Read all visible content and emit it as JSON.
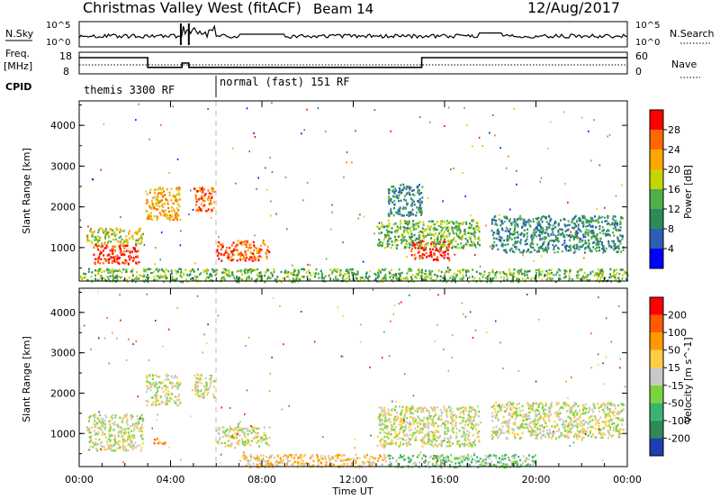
{
  "header": {
    "title": "Christmas Valley West (fitACF)",
    "beam": "Beam 14",
    "date": "12/Aug/2017"
  },
  "colors": {
    "frame": "#000000",
    "gridline": "#aaaaaa"
  },
  "top_panels": {
    "nsky_label": "N.Sky",
    "nsearch_label": "N.Search",
    "nsky_ticks": [
      "10^5",
      "10^0"
    ],
    "nsearch_ticks": [
      "10^5",
      "10^0"
    ],
    "freq_label_1": "Freq.",
    "freq_label_2": "[MHz]",
    "freq_ticks": [
      "18",
      "8"
    ],
    "nave_label": "Nave",
    "nave_ticks": [
      "60",
      "0"
    ],
    "cpid_label": "CPID",
    "cpid_modes": [
      {
        "name": "themis 3300 RF",
        "start_hour": 0.0,
        "end_hour": 6.0
      },
      {
        "name": "normal (fast) 151 RF",
        "start_hour": 6.0,
        "end_hour": 24.0
      }
    ],
    "freq_steps": [
      {
        "start_hour": 0.0,
        "end_hour": 3.0,
        "value": 15.5
      },
      {
        "start_hour": 3.0,
        "end_hour": 4.5,
        "value": 11.0
      },
      {
        "start_hour": 4.5,
        "end_hour": 4.8,
        "value": 13.0
      },
      {
        "start_hour": 4.8,
        "end_hour": 15.0,
        "value": 11.0
      },
      {
        "start_hour": 15.0,
        "end_hour": 24.0,
        "value": 15.5
      }
    ]
  },
  "chart_data": {
    "type": "heatmap",
    "x_axis": {
      "label": "Time UT",
      "ticks": [
        "00:00",
        "04:00",
        "08:00",
        "12:00",
        "16:00",
        "20:00",
        "00:00"
      ],
      "range_hours": [
        0,
        24
      ]
    },
    "panels": [
      {
        "name": "power",
        "ylabel": "Slant Range [km]",
        "yticks": [
          "1000",
          "2000",
          "3000",
          "4000"
        ],
        "ylim": [
          180,
          4600
        ],
        "colorbar_label": "Power [dB]",
        "colorbar_ticks": [
          "4",
          "8",
          "12",
          "16",
          "20",
          "24",
          "28"
        ],
        "colorbar_colors": [
          "#0000ff",
          "#2c5fb4",
          "#2e8b57",
          "#4db04a",
          "#c8d400",
          "#ffa500",
          "#ff6a00",
          "#ff0000"
        ],
        "regions": [
          {
            "t0": 0.6,
            "t1": 2.6,
            "r0": 600,
            "r1": 1100,
            "level": 7
          },
          {
            "t0": 0.3,
            "t1": 2.8,
            "r0": 1100,
            "r1": 1500,
            "level": 4
          },
          {
            "t0": 2.9,
            "t1": 4.4,
            "r0": 1700,
            "r1": 2500,
            "level": 5
          },
          {
            "t0": 5.0,
            "t1": 5.9,
            "r0": 1900,
            "r1": 2500,
            "level": 6
          },
          {
            "t0": 6.0,
            "t1": 8.3,
            "r0": 700,
            "r1": 1200,
            "level": 6
          },
          {
            "t0": 14.5,
            "t1": 16.2,
            "r0": 700,
            "r1": 1200,
            "level": 7
          },
          {
            "t0": 13.0,
            "t1": 17.5,
            "r0": 1000,
            "r1": 1700,
            "level": 3
          },
          {
            "t0": 18.0,
            "t1": 23.8,
            "r0": 900,
            "r1": 1800,
            "level": 2
          },
          {
            "t0": 13.5,
            "t1": 15.0,
            "r0": 1800,
            "r1": 2600,
            "level": 2
          },
          {
            "t0": 0.0,
            "t1": 24.0,
            "r0": 180,
            "r1": 500,
            "level": 3
          }
        ]
      },
      {
        "name": "velocity",
        "ylabel": "Slant Range [km]",
        "yticks": [
          "1000",
          "2000",
          "3000",
          "4000"
        ],
        "ylim": [
          180,
          4600
        ],
        "colorbar_label": "Velocity [m s^-1]",
        "colorbar_ticks": [
          "200",
          "100",
          "50",
          "15",
          "-15",
          "-50",
          "-100",
          "-200"
        ],
        "colorbar_colors": [
          "#1f3fb0",
          "#2e8b57",
          "#3cb371",
          "#7cd43c",
          "#c8c8c8",
          "#ffcc44",
          "#ff9900",
          "#ff5a00",
          "#ff0000"
        ],
        "regions": [
          {
            "t0": 0.3,
            "t1": 2.8,
            "r0": 600,
            "r1": 1500,
            "level": 4
          },
          {
            "t0": 2.9,
            "t1": 4.4,
            "r0": 1700,
            "r1": 2500,
            "level": 4
          },
          {
            "t0": 5.0,
            "t1": 5.9,
            "r0": 1900,
            "r1": 2500,
            "level": 4
          },
          {
            "t0": 6.0,
            "t1": 8.3,
            "r0": 700,
            "r1": 1200,
            "level": 4
          },
          {
            "t0": 13.0,
            "t1": 17.5,
            "r0": 700,
            "r1": 1700,
            "level": 4
          },
          {
            "t0": 18.0,
            "t1": 23.8,
            "r0": 900,
            "r1": 1800,
            "level": 4
          },
          {
            "t0": 3.2,
            "t1": 3.8,
            "r0": 750,
            "r1": 900,
            "level": 6
          },
          {
            "t0": 7.0,
            "t1": 13.5,
            "r0": 180,
            "r1": 500,
            "level": 5
          },
          {
            "t0": 13.5,
            "t1": 20.0,
            "r0": 180,
            "r1": 500,
            "level": 3
          }
        ]
      }
    ]
  }
}
